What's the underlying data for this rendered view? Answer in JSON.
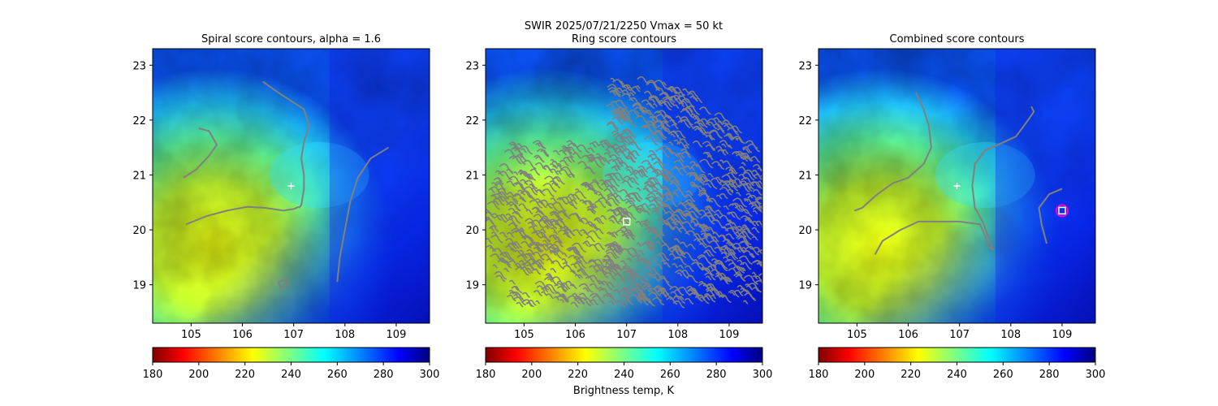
{
  "figure": {
    "suptitle_line1": "SWIR  2025/07/21/2250    Vmax = 50 kt",
    "colorbar_label": "Brightness temp, K",
    "colormap": "jet",
    "contour_color": "#808080",
    "background_color": "#ffffff"
  },
  "chart_data": [
    {
      "type": "heatmap",
      "title": "Spiral score contours, alpha =  1.6",
      "xlabel": "",
      "ylabel": "",
      "xlim": [
        104.25,
        109.65
      ],
      "ylim": [
        18.3,
        23.3
      ],
      "xticks": [
        105,
        106,
        107,
        108,
        109
      ],
      "yticks": [
        19,
        20,
        21,
        22,
        23
      ],
      "colorbar": {
        "vmin": 180,
        "vmax": 300,
        "ticks": [
          180,
          200,
          220,
          240,
          260,
          280,
          300
        ]
      },
      "center_marker": {
        "lon": 106.95,
        "lat": 20.8,
        "symbol": "+"
      },
      "contours": [
        [
          [
            106.4,
            22.7
          ],
          [
            106.7,
            22.5
          ],
          [
            106.95,
            22.35
          ],
          [
            107.2,
            22.2
          ],
          [
            107.3,
            21.9
          ],
          [
            107.2,
            21.6
          ],
          [
            107.15,
            21.3
          ],
          [
            107.2,
            21.0
          ],
          [
            107.2,
            20.75
          ],
          [
            107.15,
            20.45
          ],
          [
            107.1,
            20.4
          ]
        ],
        [
          [
            105.15,
            21.85
          ],
          [
            105.35,
            21.8
          ],
          [
            105.5,
            21.55
          ],
          [
            105.35,
            21.35
          ],
          [
            105.1,
            21.1
          ],
          [
            104.85,
            20.95
          ]
        ],
        [
          [
            104.9,
            20.1
          ],
          [
            105.3,
            20.25
          ],
          [
            105.7,
            20.35
          ],
          [
            106.1,
            20.42
          ],
          [
            106.45,
            20.4
          ],
          [
            106.8,
            20.35
          ],
          [
            107.0,
            20.38
          ],
          [
            107.1,
            20.42
          ]
        ],
        [
          [
            108.85,
            21.5
          ],
          [
            108.5,
            21.3
          ],
          [
            108.25,
            20.95
          ],
          [
            108.1,
            20.5
          ],
          [
            108.0,
            20.0
          ],
          [
            107.9,
            19.5
          ],
          [
            107.85,
            19.05
          ]
        ],
        [
          [
            106.7,
            19.05
          ],
          [
            106.85,
            19.1
          ],
          [
            106.9,
            19.0
          ],
          [
            106.75,
            18.95
          ],
          [
            106.7,
            19.05
          ]
        ]
      ],
      "markers": []
    },
    {
      "type": "heatmap",
      "title": "Ring score contours",
      "xlabel": "",
      "ylabel": "",
      "xlim": [
        104.25,
        109.65
      ],
      "ylim": [
        18.3,
        23.3
      ],
      "xticks": [
        105,
        106,
        107,
        108,
        109
      ],
      "yticks": [
        19,
        20,
        21,
        22,
        23
      ],
      "colorbar": {
        "vmin": 180,
        "vmax": 300,
        "ticks": [
          180,
          200,
          220,
          240,
          260,
          280,
          300
        ]
      },
      "center_marker": null,
      "ring_region": {
        "center_lon": 107.0,
        "center_lat": 20.1,
        "radius_deg": 2.8,
        "lat_min": 18.65,
        "lon_min": 104.15,
        "upper_lon_min": 106.6
      },
      "markers": [
        {
          "lon": 107.0,
          "lat": 20.15,
          "symbol": "square"
        }
      ]
    },
    {
      "type": "heatmap",
      "title": "Combined score contours",
      "xlabel": "",
      "ylabel": "",
      "xlim": [
        104.25,
        109.65
      ],
      "ylim": [
        18.3,
        23.3
      ],
      "xticks": [
        105,
        106,
        107,
        108,
        109
      ],
      "yticks": [
        19,
        20,
        21,
        22,
        23
      ],
      "colorbar": {
        "vmin": 180,
        "vmax": 300,
        "ticks": [
          180,
          200,
          220,
          240,
          260,
          280,
          300
        ]
      },
      "center_marker": {
        "lon": 106.95,
        "lat": 20.8,
        "symbol": "+"
      },
      "contours": [
        [
          [
            106.15,
            22.5
          ],
          [
            106.3,
            22.2
          ],
          [
            106.4,
            21.9
          ],
          [
            106.45,
            21.5
          ],
          [
            106.3,
            21.2
          ],
          [
            106.0,
            20.95
          ],
          [
            105.7,
            20.85
          ],
          [
            105.4,
            20.65
          ],
          [
            105.1,
            20.4
          ],
          [
            104.95,
            20.35
          ]
        ],
        [
          [
            105.35,
            19.55
          ],
          [
            105.5,
            19.8
          ],
          [
            105.85,
            20.0
          ],
          [
            106.2,
            20.15
          ],
          [
            106.6,
            20.15
          ],
          [
            107.0,
            20.15
          ],
          [
            107.4,
            20.1
          ],
          [
            107.5,
            19.9
          ],
          [
            107.55,
            19.7
          ],
          [
            107.65,
            19.65
          ],
          [
            107.55,
            19.9
          ],
          [
            107.45,
            20.15
          ],
          [
            107.3,
            20.4
          ],
          [
            107.25,
            20.8
          ],
          [
            107.3,
            21.2
          ],
          [
            107.5,
            21.45
          ],
          [
            107.75,
            21.55
          ],
          [
            108.1,
            21.7
          ],
          [
            108.3,
            21.95
          ],
          [
            108.45,
            22.15
          ],
          [
            108.4,
            22.25
          ]
        ],
        [
          [
            109.0,
            20.75
          ],
          [
            108.75,
            20.65
          ],
          [
            108.55,
            20.4
          ],
          [
            108.6,
            20.1
          ],
          [
            108.7,
            19.75
          ]
        ]
      ],
      "markers": [
        {
          "lon": 109.0,
          "lat": 20.35,
          "symbol": "square-in-circle"
        }
      ]
    }
  ]
}
